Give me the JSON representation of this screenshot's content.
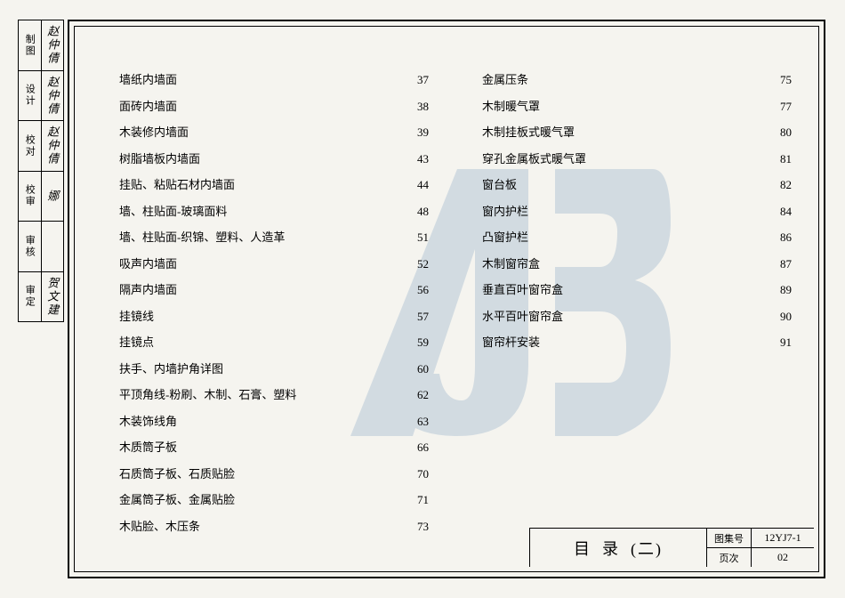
{
  "side_labels": [
    {
      "role": "制图",
      "name": "赵仲倩",
      "sig": "赵仲倩"
    },
    {
      "role": "设计",
      "name": "赵仲倩",
      "sig": "赵仲倩"
    },
    {
      "role": "校对",
      "name": "赵仲倩",
      "sig": "赵仲倩"
    },
    {
      "role": "校审",
      "name": "娜",
      "sig": "娜"
    },
    {
      "role": "审核",
      "name": "",
      "sig": ""
    },
    {
      "role": "审定",
      "name": "贺文建",
      "sig": "贺文建"
    }
  ],
  "toc": {
    "left": [
      {
        "label": "墙纸内墙面",
        "page": "37"
      },
      {
        "label": "面砖内墙面",
        "page": "38"
      },
      {
        "label": "木装修内墙面",
        "page": "39"
      },
      {
        "label": "树脂墙板内墙面",
        "page": "43"
      },
      {
        "label": "挂贴、粘贴石材内墙面",
        "page": "44"
      },
      {
        "label": "墙、柱贴面-玻璃面料",
        "page": "48"
      },
      {
        "label": "墙、柱贴面-织锦、塑料、人造革",
        "page": "51"
      },
      {
        "label": "吸声内墙面",
        "page": "52"
      },
      {
        "label": "隔声内墙面",
        "page": "56"
      },
      {
        "label": "挂镜线",
        "page": "57"
      },
      {
        "label": "挂镜点",
        "page": "59"
      },
      {
        "label": "扶手、内墙护角详图",
        "page": "60"
      },
      {
        "label": "平顶角线-粉刷、木制、石膏、塑料",
        "page": "62"
      },
      {
        "label": "木装饰线角",
        "page": "63"
      },
      {
        "label": "木质筒子板",
        "page": "66"
      },
      {
        "label": "石质筒子板、石质贴脸",
        "page": "70"
      },
      {
        "label": "金属筒子板、金属贴脸",
        "page": "71"
      },
      {
        "label": "木贴脸、木压条",
        "page": "73"
      }
    ],
    "right": [
      {
        "label": "金属压条",
        "page": "75"
      },
      {
        "label": "木制暖气罩",
        "page": "77"
      },
      {
        "label": "木制挂板式暖气罩",
        "page": "80"
      },
      {
        "label": "穿孔金属板式暖气罩",
        "page": "81"
      },
      {
        "label": "窗台板",
        "page": "82"
      },
      {
        "label": "窗内护栏",
        "page": "84"
      },
      {
        "label": "凸窗护栏",
        "page": "86"
      },
      {
        "label": "木制窗帘盒",
        "page": "87"
      },
      {
        "label": "垂直百叶窗帘盒",
        "page": "89"
      },
      {
        "label": "水平百叶窗帘盒",
        "page": "90"
      },
      {
        "label": "窗帘杆安装",
        "page": "91"
      }
    ],
    "fontsize": 13,
    "text_color": "#000000"
  },
  "title_block": {
    "title_main": "目录",
    "title_sub": "(二)",
    "doc_no_key": "图集号",
    "doc_no_val": "12YJ7-1",
    "page_key": "页次",
    "page_val": "02"
  },
  "watermark": {
    "color": "#3a6fa8",
    "opacity": 0.18
  },
  "background_color": "#f5f4ef"
}
